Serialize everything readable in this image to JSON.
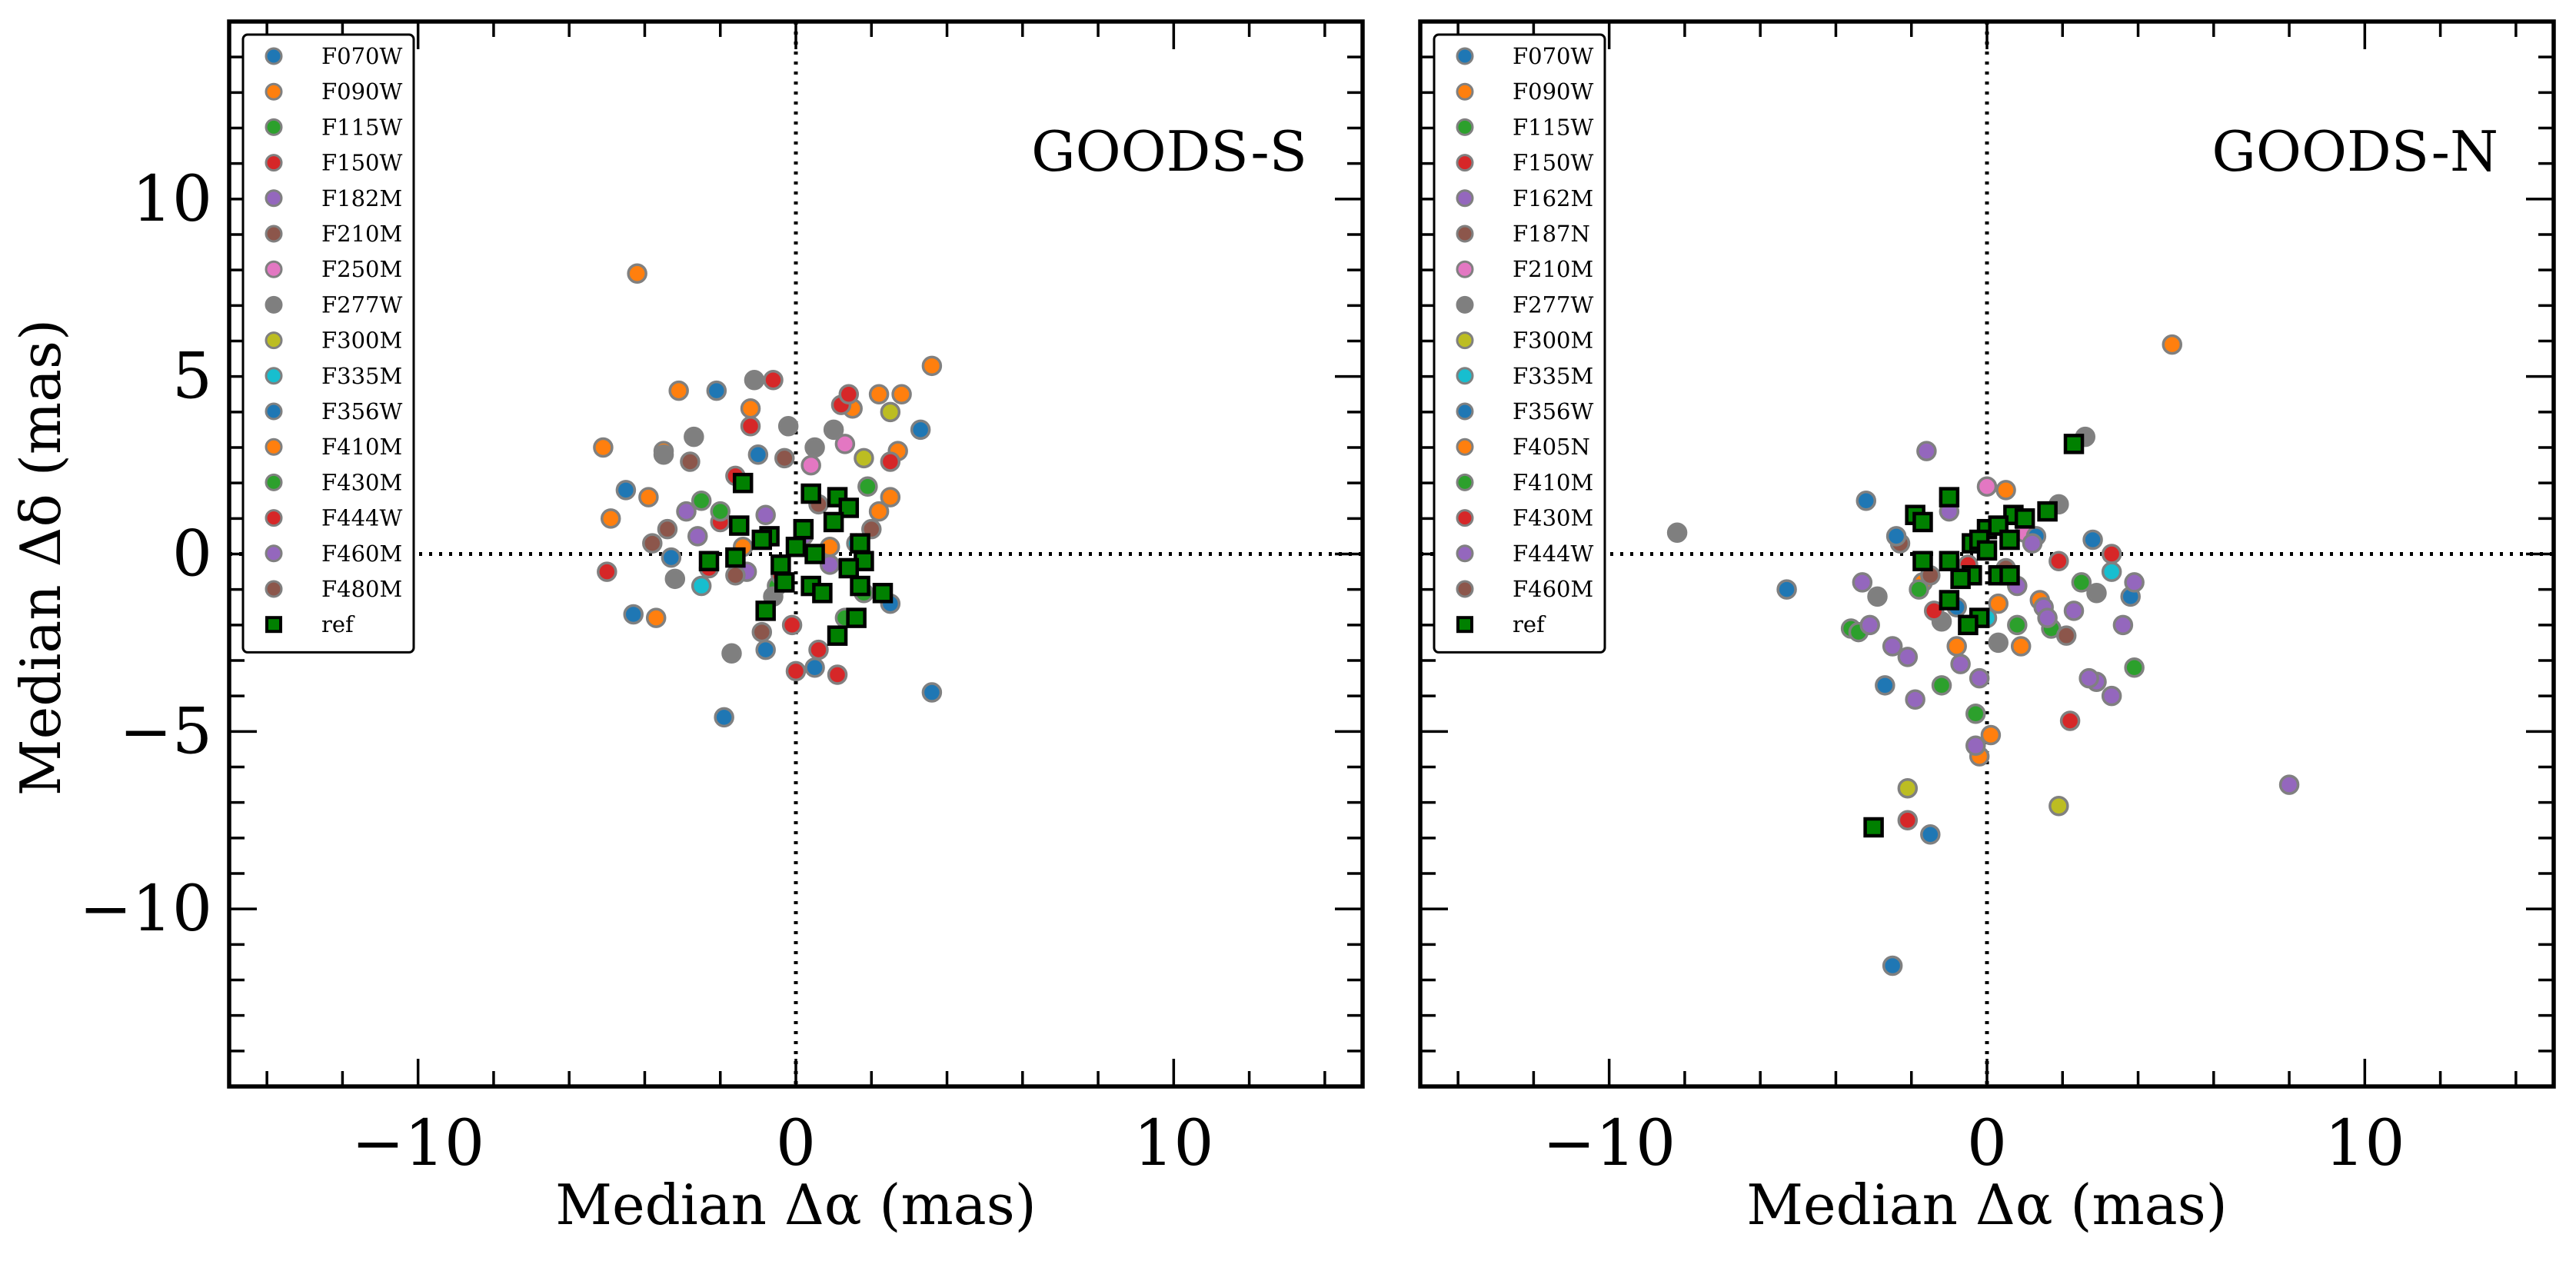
{
  "figure": {
    "ylabel": "Median Δδ (mas)",
    "xlabel": "Median Δα (mas)"
  },
  "chart_data": [
    {
      "type": "scatter",
      "title": "GOODS-S",
      "xlabel": "Median Δα (mas)",
      "ylabel": "Median Δδ (mas)",
      "xlim": [
        -15,
        15
      ],
      "ylim": [
        -15,
        15
      ],
      "xticks": [
        -10,
        0,
        10
      ],
      "yticks": [
        10,
        5,
        0,
        -5,
        -10
      ],
      "xtick_labels": [
        "−10",
        "0",
        "10"
      ],
      "ytick_labels": [
        "10",
        "5",
        "0",
        "−5",
        "−10"
      ],
      "legend_position": "top-left",
      "reference_lines": {
        "x": 0,
        "y": 0,
        "style": "dotted"
      },
      "series": [
        {
          "name": "F070W",
          "color": "#1f77b4",
          "marker": "circle",
          "points": [
            [
              -2.1,
              4.6
            ],
            [
              -4.5,
              1.8
            ],
            [
              -4.3,
              -1.7
            ],
            [
              0.5,
              -3.2
            ],
            [
              3.6,
              -3.9
            ],
            [
              -1.9,
              -4.6
            ],
            [
              2.5,
              -1.4
            ],
            [
              -0.8,
              -2.7
            ]
          ]
        },
        {
          "name": "F090W",
          "color": "#ff7f0e",
          "marker": "circle",
          "points": [
            [
              -4.2,
              7.9
            ],
            [
              -3.1,
              4.6
            ],
            [
              3.6,
              5.3
            ],
            [
              2.8,
              4.5
            ],
            [
              2.2,
              4.5
            ],
            [
              -5.1,
              3.0
            ],
            [
              -3.5,
              2.9
            ],
            [
              -1.2,
              4.1
            ],
            [
              1.5,
              4.1
            ],
            [
              2.7,
              2.9
            ],
            [
              -3.9,
              1.6
            ],
            [
              -4.9,
              1.0
            ],
            [
              -3.7,
              -1.8
            ],
            [
              2.5,
              1.6
            ],
            [
              2.2,
              1.2
            ]
          ]
        },
        {
          "name": "F115W",
          "color": "#2ca02c",
          "marker": "circle",
          "points": [
            [
              1.9,
              1.9
            ],
            [
              -2.5,
              1.5
            ],
            [
              -0.5,
              -0.9
            ],
            [
              1.8,
              -1.1
            ]
          ]
        },
        {
          "name": "F150W",
          "color": "#d62728",
          "marker": "circle",
          "points": [
            [
              -0.6,
              4.9
            ],
            [
              -1.2,
              3.6
            ],
            [
              1.2,
              4.2
            ],
            [
              1.4,
              4.5
            ],
            [
              -5.0,
              -0.5
            ],
            [
              0.0,
              -3.3
            ],
            [
              1.1,
              -3.4
            ],
            [
              0.6,
              -2.7
            ],
            [
              2.5,
              2.6
            ],
            [
              -2.0,
              0.9
            ],
            [
              -1.6,
              2.2
            ]
          ]
        },
        {
          "name": "F182M",
          "color": "#9467bd",
          "marker": "circle",
          "points": [
            [
              -0.8,
              1.1
            ],
            [
              0.2,
              0.5
            ],
            [
              -1.3,
              -0.5
            ],
            [
              -2.6,
              0.5
            ]
          ]
        },
        {
          "name": "F210M",
          "color": "#8c564b",
          "marker": "circle",
          "points": [
            [
              -2.8,
              2.6
            ],
            [
              -3.4,
              0.7
            ],
            [
              -0.3,
              2.7
            ],
            [
              -0.9,
              -2.2
            ],
            [
              0.6,
              1.4
            ],
            [
              -3.8,
              0.3
            ]
          ]
        },
        {
          "name": "F250M",
          "color": "#e377c2",
          "marker": "circle",
          "points": [
            [
              1.3,
              3.1
            ],
            [
              0.4,
              2.5
            ]
          ]
        },
        {
          "name": "F277W",
          "color": "#7f7f7f",
          "marker": "circle",
          "points": [
            [
              -1.1,
              4.9
            ],
            [
              -1.7,
              -2.8
            ],
            [
              -3.2,
              -0.7
            ],
            [
              -0.6,
              -1.2
            ],
            [
              1.0,
              3.5
            ],
            [
              -0.2,
              3.6
            ],
            [
              -3.5,
              2.8
            ],
            [
              -2.7,
              3.3
            ],
            [
              0.5,
              3.0
            ]
          ]
        },
        {
          "name": "F300M",
          "color": "#bcbd22",
          "marker": "circle",
          "points": [
            [
              2.5,
              4.0
            ],
            [
              1.8,
              2.7
            ]
          ]
        },
        {
          "name": "F335M",
          "color": "#17becf",
          "marker": "circle",
          "points": [
            [
              -2.5,
              -0.9
            ],
            [
              1.6,
              0.3
            ]
          ]
        },
        {
          "name": "F356W",
          "color": "#1f77b4",
          "marker": "circle",
          "points": [
            [
              3.3,
              3.5
            ],
            [
              -3.3,
              -0.1
            ],
            [
              -1.0,
              2.8
            ]
          ]
        },
        {
          "name": "F410M",
          "color": "#ff7f0e",
          "marker": "circle",
          "points": [
            [
              -1.4,
              0.2
            ],
            [
              0.9,
              0.2
            ]
          ]
        },
        {
          "name": "F430M",
          "color": "#2ca02c",
          "marker": "circle",
          "points": [
            [
              1.3,
              -1.8
            ],
            [
              -2.0,
              1.2
            ]
          ]
        },
        {
          "name": "F444W",
          "color": "#d62728",
          "marker": "circle",
          "points": [
            [
              -0.4,
              -0.6
            ],
            [
              -0.1,
              -2.0
            ],
            [
              -2.3,
              -0.4
            ]
          ]
        },
        {
          "name": "F460M",
          "color": "#9467bd",
          "marker": "circle",
          "points": [
            [
              -2.9,
              1.2
            ],
            [
              0.9,
              -0.3
            ]
          ]
        },
        {
          "name": "F480M",
          "color": "#8c564b",
          "marker": "circle",
          "points": [
            [
              -1.6,
              -0.6
            ],
            [
              2.0,
              0.7
            ]
          ]
        },
        {
          "name": "ref",
          "color": "#008000",
          "marker": "square",
          "points": [
            [
              -1.4,
              2.0
            ],
            [
              0.4,
              1.7
            ],
            [
              1.1,
              1.6
            ],
            [
              1.4,
              1.3
            ],
            [
              1.0,
              0.9
            ],
            [
              -1.5,
              0.8
            ],
            [
              -0.7,
              0.5
            ],
            [
              -0.9,
              0.4
            ],
            [
              0.2,
              0.7
            ],
            [
              0.0,
              0.2
            ],
            [
              0.5,
              0.0
            ],
            [
              1.7,
              0.3
            ],
            [
              1.8,
              -0.2
            ],
            [
              1.4,
              -0.4
            ],
            [
              -0.4,
              -0.3
            ],
            [
              -0.3,
              -0.8
            ],
            [
              0.4,
              -0.9
            ],
            [
              0.7,
              -1.1
            ],
            [
              1.7,
              -0.9
            ],
            [
              2.3,
              -1.1
            ],
            [
              -1.6,
              -0.1
            ],
            [
              -2.3,
              -0.2
            ],
            [
              1.6,
              -1.8
            ],
            [
              -0.8,
              -1.6
            ],
            [
              1.1,
              -2.3
            ]
          ]
        }
      ]
    },
    {
      "type": "scatter",
      "title": "GOODS-N",
      "xlabel": "Median Δα (mas)",
      "ylabel": "Median Δδ (mas)",
      "xlim": [
        -15,
        15
      ],
      "ylim": [
        -15,
        15
      ],
      "xticks": [
        -10,
        0,
        10
      ],
      "yticks": [
        10,
        5,
        0,
        -5,
        -10
      ],
      "xtick_labels": [
        "−10",
        "0",
        "10"
      ],
      "ytick_labels": [],
      "legend_position": "top-left",
      "reference_lines": {
        "x": 0,
        "y": 0,
        "style": "dotted"
      },
      "series": [
        {
          "name": "F070W",
          "color": "#1f77b4",
          "marker": "circle",
          "points": [
            [
              -3.2,
              1.5
            ],
            [
              -5.3,
              -1.0
            ],
            [
              -2.5,
              -11.6
            ],
            [
              -0.8,
              -1.5
            ],
            [
              2.8,
              0.4
            ],
            [
              3.8,
              -1.2
            ],
            [
              -2.7,
              -3.7
            ],
            [
              -1.5,
              -7.9
            ]
          ]
        },
        {
          "name": "F090W",
          "color": "#ff7f0e",
          "marker": "circle",
          "points": [
            [
              4.9,
              5.9
            ],
            [
              0.5,
              1.8
            ],
            [
              -0.2,
              -5.7
            ],
            [
              0.9,
              -2.6
            ],
            [
              0.1,
              -5.1
            ],
            [
              1.4,
              -1.3
            ],
            [
              -1.7,
              -0.8
            ]
          ]
        },
        {
          "name": "F115W",
          "color": "#2ca02c",
          "marker": "circle",
          "points": [
            [
              -3.6,
              -2.1
            ],
            [
              -0.3,
              -4.5
            ],
            [
              1.7,
              -2.1
            ],
            [
              3.9,
              -3.2
            ],
            [
              -1.2,
              -3.7
            ],
            [
              2.5,
              -0.8
            ]
          ]
        },
        {
          "name": "F150W",
          "color": "#d62728",
          "marker": "circle",
          "points": [
            [
              2.2,
              -4.7
            ],
            [
              -2.1,
              -7.5
            ],
            [
              3.3,
              0.0
            ],
            [
              -0.5,
              -0.3
            ]
          ]
        },
        {
          "name": "F162M",
          "color": "#9467bd",
          "marker": "circle",
          "points": [
            [
              8.0,
              -6.5
            ],
            [
              -1.6,
              2.9
            ],
            [
              3.9,
              -0.8
            ],
            [
              -3.3,
              -0.8
            ],
            [
              -0.7,
              -3.1
            ],
            [
              2.9,
              -3.6
            ],
            [
              3.3,
              -4.0
            ],
            [
              -2.5,
              -2.6
            ],
            [
              1.5,
              -1.5
            ],
            [
              -0.3,
              -5.4
            ],
            [
              2.7,
              -3.5
            ],
            [
              3.6,
              -2.0
            ]
          ]
        },
        {
          "name": "F187N",
          "color": "#8c564b",
          "marker": "circle",
          "points": [
            [
              -1.0,
              1.5
            ],
            [
              2.1,
              -2.3
            ],
            [
              -2.3,
              0.3
            ]
          ]
        },
        {
          "name": "F210M",
          "color": "#e377c2",
          "marker": "circle",
          "points": [
            [
              0.0,
              1.9
            ],
            [
              1.0,
              0.6
            ]
          ]
        },
        {
          "name": "F277W",
          "color": "#7f7f7f",
          "marker": "circle",
          "points": [
            [
              -8.2,
              0.6
            ],
            [
              2.6,
              3.3
            ],
            [
              1.9,
              1.4
            ],
            [
              -1.2,
              -1.9
            ],
            [
              0.3,
              -2.5
            ],
            [
              2.9,
              -1.1
            ],
            [
              -2.9,
              -1.2
            ]
          ]
        },
        {
          "name": "F300M",
          "color": "#bcbd22",
          "marker": "circle",
          "points": [
            [
              1.9,
              -7.1
            ],
            [
              -2.1,
              -6.6
            ]
          ]
        },
        {
          "name": "F335M",
          "color": "#17becf",
          "marker": "circle",
          "points": [
            [
              3.3,
              -0.5
            ],
            [
              0.0,
              -1.8
            ]
          ]
        },
        {
          "name": "F356W",
          "color": "#1f77b4",
          "marker": "circle",
          "points": [
            [
              -2.4,
              0.5
            ],
            [
              1.3,
              0.5
            ]
          ]
        },
        {
          "name": "F405N",
          "color": "#ff7f0e",
          "marker": "circle",
          "points": [
            [
              -0.8,
              -2.6
            ],
            [
              0.3,
              -1.4
            ]
          ]
        },
        {
          "name": "F410M",
          "color": "#2ca02c",
          "marker": "circle",
          "points": [
            [
              -1.8,
              -1.0
            ],
            [
              -3.4,
              -2.2
            ],
            [
              0.8,
              -2.0
            ]
          ]
        },
        {
          "name": "F430M",
          "color": "#d62728",
          "marker": "circle",
          "points": [
            [
              1.9,
              -0.2
            ],
            [
              -1.4,
              -1.6
            ]
          ]
        },
        {
          "name": "F444W",
          "color": "#9467bd",
          "marker": "circle",
          "points": [
            [
              -1.0,
              1.2
            ],
            [
              -1.9,
              -4.1
            ],
            [
              -0.6,
              -0.6
            ],
            [
              1.2,
              0.3
            ],
            [
              -2.1,
              -2.9
            ],
            [
              0.8,
              -0.9
            ],
            [
              -3.1,
              -2.0
            ],
            [
              1.6,
              -1.8
            ],
            [
              -0.2,
              -3.5
            ],
            [
              2.3,
              -1.6
            ]
          ]
        },
        {
          "name": "F460M",
          "color": "#8c564b",
          "marker": "circle",
          "points": [
            [
              -1.5,
              -0.6
            ],
            [
              0.5,
              -0.4
            ]
          ]
        },
        {
          "name": "ref",
          "color": "#008000",
          "marker": "square",
          "points": [
            [
              2.3,
              3.1
            ],
            [
              -1.0,
              1.6
            ],
            [
              1.6,
              1.2
            ],
            [
              -1.9,
              1.1
            ],
            [
              -1.7,
              0.9
            ],
            [
              0.7,
              1.1
            ],
            [
              1.0,
              1.0
            ],
            [
              0.0,
              0.7
            ],
            [
              0.3,
              0.8
            ],
            [
              -0.4,
              0.3
            ],
            [
              0.6,
              0.4
            ],
            [
              -0.2,
              0.4
            ],
            [
              0.0,
              0.1
            ],
            [
              -1.0,
              -0.2
            ],
            [
              -0.4,
              -0.6
            ],
            [
              0.3,
              -0.6
            ],
            [
              0.6,
              -0.6
            ],
            [
              -0.7,
              -0.7
            ],
            [
              -1.0,
              -1.3
            ],
            [
              -0.2,
              -1.8
            ],
            [
              -0.5,
              -2.0
            ],
            [
              -3.0,
              -7.7
            ],
            [
              -1.7,
              -0.2
            ]
          ]
        }
      ]
    }
  ]
}
